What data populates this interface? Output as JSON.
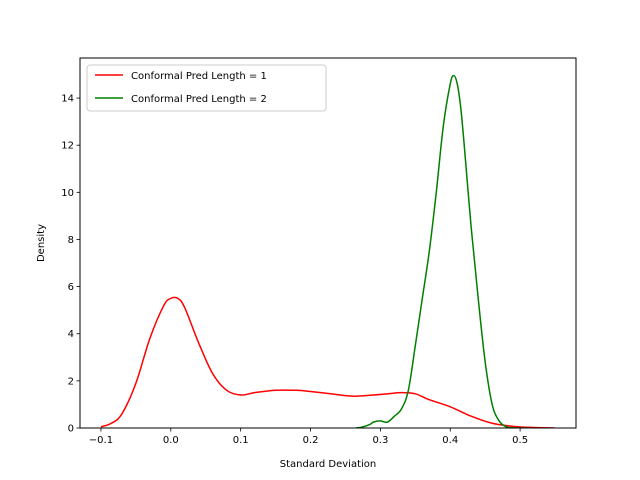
{
  "chart_data": {
    "type": "line",
    "xlabel": "Standard Deviation",
    "ylabel": "Density",
    "xlim": [
      -0.13,
      0.58
    ],
    "ylim": [
      0,
      15.7
    ],
    "xticks": [
      -0.1,
      0.0,
      0.1,
      0.2,
      0.3,
      0.4,
      0.5
    ],
    "xtick_labels": [
      "−0.1",
      "0.0",
      "0.1",
      "0.2",
      "0.3",
      "0.4",
      "0.5"
    ],
    "yticks": [
      0,
      2,
      4,
      6,
      8,
      10,
      12,
      14
    ],
    "ytick_labels": [
      "0",
      "2",
      "4",
      "6",
      "8",
      "10",
      "12",
      "14"
    ],
    "grid": false,
    "legend_position": "upper-left",
    "series": [
      {
        "name": "Conformal Pred Length = 1",
        "color": "#ff0000",
        "x": [
          -0.1,
          -0.085,
          -0.07,
          -0.05,
          -0.03,
          -0.01,
          0.0,
          0.01,
          0.02,
          0.04,
          0.06,
          0.08,
          0.1,
          0.12,
          0.15,
          0.18,
          0.2,
          0.23,
          0.26,
          0.29,
          0.31,
          0.33,
          0.35,
          0.37,
          0.4,
          0.43,
          0.46,
          0.49,
          0.52,
          0.55
        ],
        "y": [
          0.05,
          0.2,
          0.6,
          1.9,
          3.8,
          5.2,
          5.5,
          5.5,
          5.1,
          3.6,
          2.3,
          1.6,
          1.4,
          1.5,
          1.6,
          1.6,
          1.55,
          1.45,
          1.35,
          1.4,
          1.45,
          1.5,
          1.45,
          1.2,
          0.9,
          0.5,
          0.2,
          0.07,
          0.02,
          0.0
        ]
      },
      {
        "name": "Conformal Pred Length = 2",
        "color": "#008000",
        "x": [
          0.265,
          0.275,
          0.285,
          0.29,
          0.3,
          0.31,
          0.32,
          0.33,
          0.34,
          0.35,
          0.36,
          0.37,
          0.38,
          0.39,
          0.4,
          0.405,
          0.41,
          0.415,
          0.42,
          0.43,
          0.44,
          0.45,
          0.46,
          0.47,
          0.48,
          0.49,
          0.5,
          0.51
        ],
        "y": [
          0.0,
          0.05,
          0.15,
          0.25,
          0.3,
          0.25,
          0.5,
          0.8,
          1.6,
          3.5,
          5.5,
          7.5,
          10.0,
          12.8,
          14.6,
          14.95,
          14.6,
          13.6,
          12.0,
          8.5,
          5.5,
          2.8,
          1.0,
          0.3,
          0.05,
          0.01,
          0.0,
          0.0
        ]
      }
    ]
  }
}
